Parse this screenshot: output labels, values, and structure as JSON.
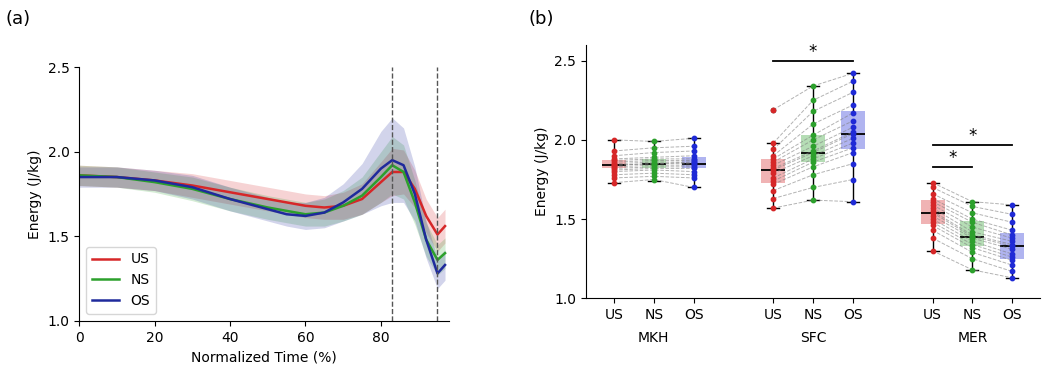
{
  "chart_data": [
    {
      "type": "line",
      "title": "(a)",
      "xlabel": "Normalized Time (%)",
      "ylabel": "Energy (J/kg)",
      "x": [
        0,
        10,
        20,
        30,
        40,
        50,
        55,
        60,
        65,
        70,
        75,
        80,
        83,
        86,
        89,
        92,
        95,
        97
      ],
      "xlim": [
        0,
        98
      ],
      "xticks": [
        0,
        20,
        40,
        60,
        80
      ],
      "ylim": [
        1.0,
        2.5
      ],
      "yticks": [
        1.0,
        1.5,
        2.0,
        2.5
      ],
      "legend": "lower left",
      "vlines": [
        83,
        95
      ],
      "series": [
        {
          "name": "US",
          "color": "#d62728",
          "values": [
            1.86,
            1.85,
            1.83,
            1.8,
            1.76,
            1.72,
            1.7,
            1.68,
            1.67,
            1.68,
            1.72,
            1.82,
            1.88,
            1.88,
            1.78,
            1.62,
            1.51,
            1.56
          ],
          "sd": [
            0.06,
            0.06,
            0.06,
            0.07,
            0.07,
            0.07,
            0.07,
            0.07,
            0.07,
            0.08,
            0.09,
            0.12,
            0.14,
            0.13,
            0.11,
            0.1,
            0.1,
            0.1
          ]
        },
        {
          "name": "NS",
          "color": "#2ca02c",
          "values": [
            1.86,
            1.85,
            1.82,
            1.78,
            1.72,
            1.67,
            1.65,
            1.63,
            1.64,
            1.68,
            1.74,
            1.85,
            1.92,
            1.88,
            1.7,
            1.48,
            1.36,
            1.4
          ],
          "sd": [
            0.06,
            0.06,
            0.06,
            0.07,
            0.07,
            0.07,
            0.07,
            0.07,
            0.08,
            0.09,
            0.11,
            0.15,
            0.17,
            0.16,
            0.13,
            0.1,
            0.09,
            0.09
          ]
        },
        {
          "name": "OS",
          "color": "#1f2a9c",
          "values": [
            1.85,
            1.85,
            1.83,
            1.79,
            1.72,
            1.66,
            1.63,
            1.62,
            1.64,
            1.7,
            1.78,
            1.9,
            1.95,
            1.92,
            1.75,
            1.48,
            1.28,
            1.33
          ],
          "sd": [
            0.06,
            0.06,
            0.06,
            0.07,
            0.07,
            0.07,
            0.07,
            0.08,
            0.09,
            0.11,
            0.15,
            0.22,
            0.25,
            0.22,
            0.16,
            0.11,
            0.09,
            0.09
          ]
        }
      ]
    },
    {
      "type": "box",
      "title": "(b)",
      "ylabel": "Energy (J/kg)",
      "ylim": [
        1.0,
        2.6
      ],
      "yticks": [
        1.0,
        1.5,
        2.0,
        2.5
      ],
      "conditions": [
        "US",
        "NS",
        "OS"
      ],
      "colors": [
        "#d62728",
        "#2ca02c",
        "#1f2ad6"
      ],
      "groups": [
        {
          "name": "MKH",
          "boxes": [
            {
              "median": 1.84,
              "q1": 1.82,
              "q3": 1.87,
              "whisker_low": 1.73,
              "whisker_high": 2.0,
              "outliers": []
            },
            {
              "median": 1.85,
              "q1": 1.82,
              "q3": 1.88,
              "whisker_low": 1.74,
              "whisker_high": 1.99,
              "outliers": []
            },
            {
              "median": 1.85,
              "q1": 1.82,
              "q3": 1.89,
              "whisker_low": 1.7,
              "whisker_high": 2.01,
              "outliers": []
            }
          ],
          "points": [
            [
              1.73,
              1.76,
              1.78,
              1.8,
              1.81,
              1.82,
              1.83,
              1.84,
              1.84,
              1.85,
              1.86,
              1.87,
              1.88,
              1.9,
              1.93,
              2.0
            ],
            [
              1.75,
              1.77,
              1.79,
              1.81,
              1.82,
              1.83,
              1.84,
              1.85,
              1.85,
              1.86,
              1.87,
              1.88,
              1.89,
              1.92,
              1.95,
              1.99
            ],
            [
              1.7,
              1.76,
              1.78,
              1.8,
              1.82,
              1.83,
              1.84,
              1.85,
              1.86,
              1.86,
              1.87,
              1.88,
              1.9,
              1.93,
              1.96,
              2.01
            ]
          ]
        },
        {
          "name": "SFC",
          "boxes": [
            {
              "median": 1.81,
              "q1": 1.73,
              "q3": 1.88,
              "whisker_low": 1.57,
              "whisker_high": 1.98,
              "outliers": [
                2.19
              ]
            },
            {
              "median": 1.92,
              "q1": 1.86,
              "q3": 2.03,
              "whisker_low": 1.62,
              "whisker_high": 2.34,
              "outliers": []
            },
            {
              "median": 2.04,
              "q1": 1.94,
              "q3": 2.18,
              "whisker_low": 1.61,
              "whisker_high": 2.42,
              "outliers": []
            }
          ],
          "points": [
            [
              1.57,
              1.63,
              1.68,
              1.72,
              1.74,
              1.76,
              1.79,
              1.81,
              1.82,
              1.84,
              1.86,
              1.88,
              1.9,
              1.94,
              1.98,
              2.19
            ],
            [
              1.62,
              1.7,
              1.78,
              1.83,
              1.86,
              1.88,
              1.9,
              1.92,
              1.93,
              1.96,
              2.0,
              2.03,
              2.1,
              2.18,
              2.25,
              2.34
            ],
            [
              1.61,
              1.75,
              1.85,
              1.92,
              1.95,
              1.98,
              2.01,
              2.04,
              2.05,
              2.08,
              2.12,
              2.17,
              2.22,
              2.3,
              2.37,
              2.42
            ]
          ]
        },
        {
          "name": "MER",
          "boxes": [
            {
              "median": 1.54,
              "q1": 1.47,
              "q3": 1.62,
              "whisker_low": 1.3,
              "whisker_high": 1.73,
              "outliers": []
            },
            {
              "median": 1.39,
              "q1": 1.33,
              "q3": 1.49,
              "whisker_low": 1.18,
              "whisker_high": 1.61,
              "outliers": []
            },
            {
              "median": 1.33,
              "q1": 1.25,
              "q3": 1.41,
              "whisker_low": 1.13,
              "whisker_high": 1.59,
              "outliers": []
            }
          ],
          "points": [
            [
              1.3,
              1.38,
              1.43,
              1.46,
              1.48,
              1.5,
              1.52,
              1.54,
              1.55,
              1.57,
              1.59,
              1.61,
              1.63,
              1.66,
              1.7,
              1.73
            ],
            [
              1.18,
              1.25,
              1.29,
              1.32,
              1.34,
              1.36,
              1.38,
              1.39,
              1.4,
              1.42,
              1.45,
              1.48,
              1.5,
              1.54,
              1.58,
              1.61
            ],
            [
              1.13,
              1.17,
              1.21,
              1.24,
              1.26,
              1.28,
              1.31,
              1.33,
              1.34,
              1.36,
              1.38,
              1.4,
              1.43,
              1.48,
              1.53,
              1.59
            ]
          ]
        }
      ],
      "significance": [
        {
          "group": "SFC",
          "from": "US",
          "to": "OS",
          "y": 2.5,
          "label": "*"
        },
        {
          "group": "MER",
          "from": "US",
          "to": "NS",
          "y": 1.83,
          "label": "*"
        },
        {
          "group": "MER",
          "from": "US",
          "to": "OS",
          "y": 1.97,
          "label": "*"
        }
      ]
    }
  ]
}
